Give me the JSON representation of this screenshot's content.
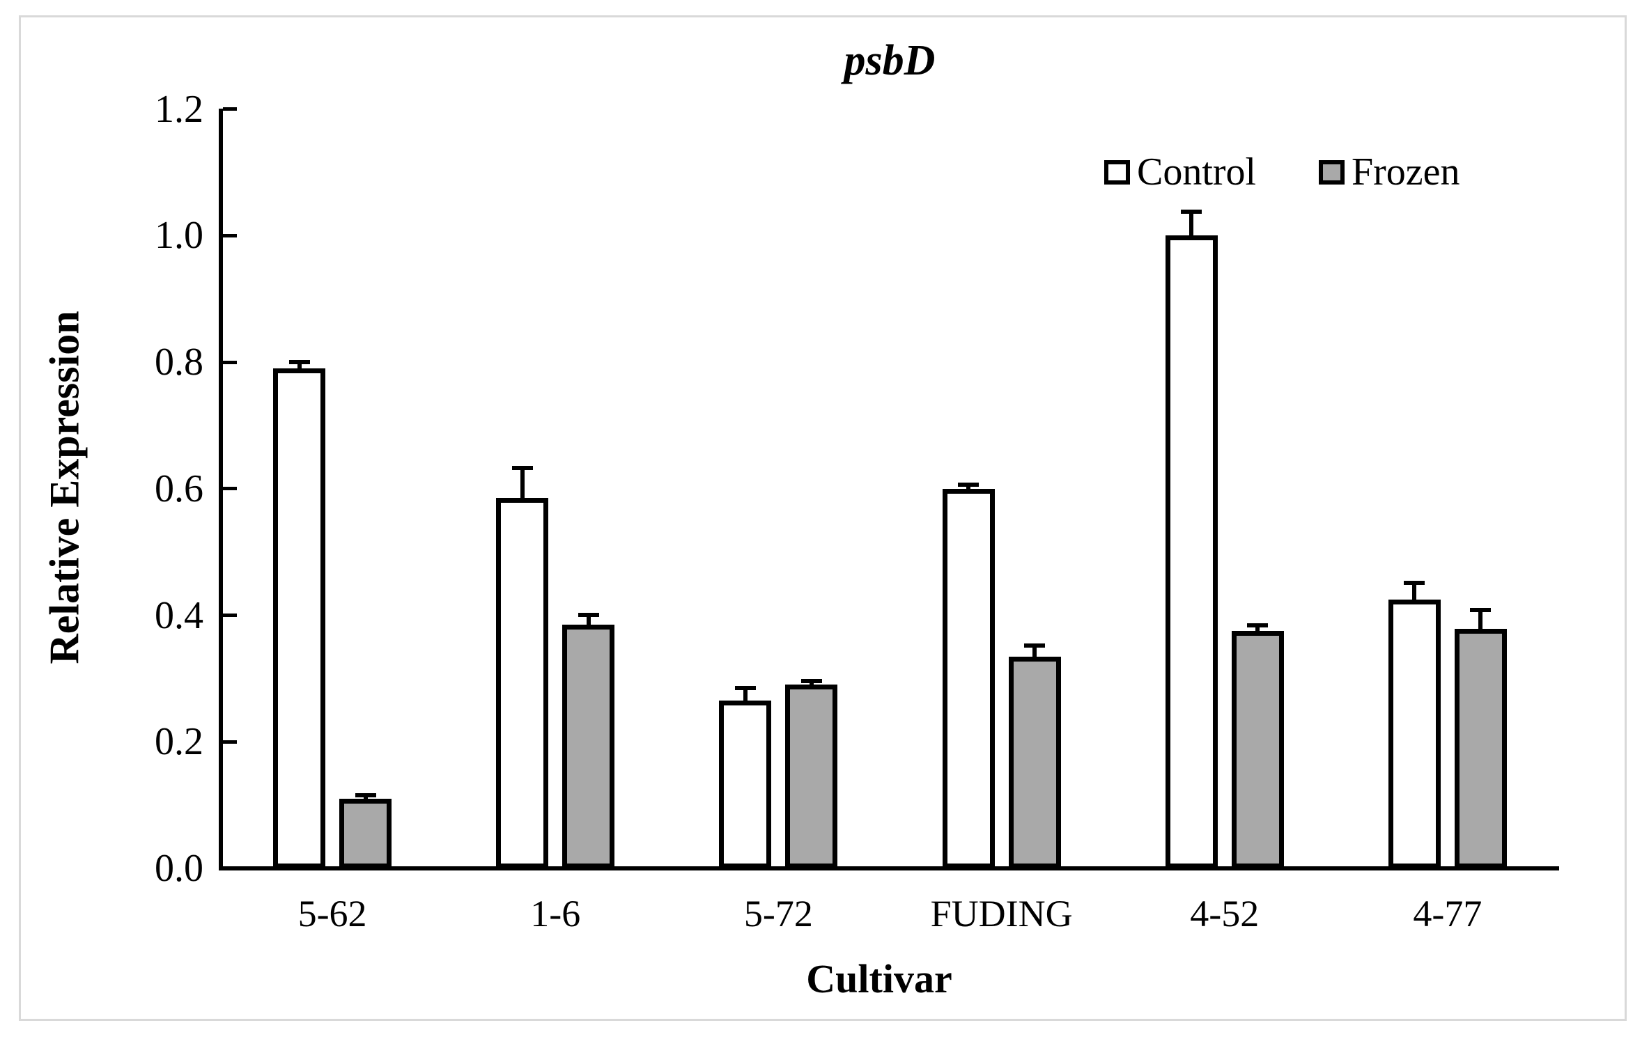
{
  "figure": {
    "border_color": "#d9d9d9",
    "background_color": "#ffffff",
    "outline_color": "#000000"
  },
  "chart_data": {
    "type": "bar",
    "title": "psbD",
    "xlabel": "Cultivar",
    "ylabel": "Relative Expression",
    "categories": [
      "5-62",
      "1-6",
      "5-72",
      "FUDING",
      "4-52",
      "4-77"
    ],
    "series": [
      {
        "name": "Control",
        "fill": "#ffffff",
        "values": [
          0.79,
          0.585,
          0.265,
          0.6,
          1.0,
          0.425
        ],
        "errors_upper": [
          0.01,
          0.048,
          0.02,
          0.006,
          0.038,
          0.026
        ]
      },
      {
        "name": "Frozen",
        "fill": "#a9a9a9",
        "values": [
          0.11,
          0.385,
          0.29,
          0.335,
          0.375,
          0.378
        ],
        "errors_upper": [
          0.005,
          0.016,
          0.006,
          0.017,
          0.009,
          0.03
        ]
      }
    ],
    "ylim": [
      0,
      1.2
    ],
    "ytick_step": 0.2,
    "ytick_labels": [
      "0.0",
      "0.2",
      "0.4",
      "0.6",
      "0.8",
      "1.0",
      "1.2"
    ],
    "grid": false,
    "legend_position": "top-right",
    "error_bars": "upper-only",
    "bar_outline": "#000000"
  }
}
